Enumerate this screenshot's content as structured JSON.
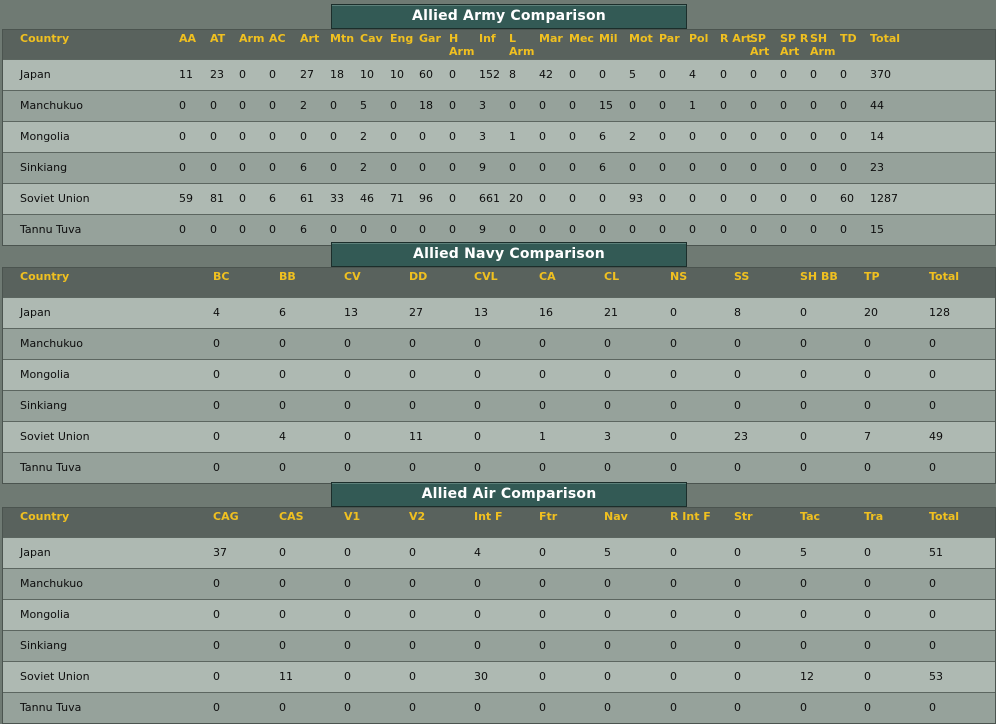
{
  "army": {
    "title": "Allied Army Comparison",
    "columns": [
      "Country",
      "AA",
      "AT",
      "Arm",
      "AC",
      "Art",
      "Mtn",
      "Cav",
      "Eng",
      "Gar",
      "H\nArm",
      "Inf",
      "L\nArm",
      "Mar",
      "Mec",
      "Mil",
      "Mot",
      "Par",
      "Pol",
      "R Art",
      "SP\nArt",
      "SP R\nArt",
      "SH\nArm",
      "TD",
      "Total"
    ],
    "rows": [
      [
        "Japan",
        "11",
        "23",
        "0",
        "0",
        "27",
        "18",
        "10",
        "10",
        "60",
        "0",
        "152",
        "8",
        "42",
        "0",
        "0",
        "5",
        "0",
        "4",
        "0",
        "0",
        "0",
        "0",
        "0",
        "370"
      ],
      [
        "Manchukuo",
        "0",
        "0",
        "0",
        "0",
        "2",
        "0",
        "5",
        "0",
        "18",
        "0",
        "3",
        "0",
        "0",
        "0",
        "15",
        "0",
        "0",
        "1",
        "0",
        "0",
        "0",
        "0",
        "0",
        "44"
      ],
      [
        "Mongolia",
        "0",
        "0",
        "0",
        "0",
        "0",
        "0",
        "2",
        "0",
        "0",
        "0",
        "3",
        "1",
        "0",
        "0",
        "6",
        "2",
        "0",
        "0",
        "0",
        "0",
        "0",
        "0",
        "0",
        "14"
      ],
      [
        "Sinkiang",
        "0",
        "0",
        "0",
        "0",
        "6",
        "0",
        "2",
        "0",
        "0",
        "0",
        "9",
        "0",
        "0",
        "0",
        "6",
        "0",
        "0",
        "0",
        "0",
        "0",
        "0",
        "0",
        "0",
        "23"
      ],
      [
        "Soviet Union",
        "59",
        "81",
        "0",
        "6",
        "61",
        "33",
        "46",
        "71",
        "96",
        "0",
        "661",
        "20",
        "0",
        "0",
        "0",
        "93",
        "0",
        "0",
        "0",
        "0",
        "0",
        "0",
        "60",
        "1287"
      ],
      [
        "Tannu Tuva",
        "0",
        "0",
        "0",
        "0",
        "6",
        "0",
        "0",
        "0",
        "0",
        "0",
        "9",
        "0",
        "0",
        "0",
        "0",
        "0",
        "0",
        "0",
        "0",
        "0",
        "0",
        "0",
        "0",
        "15"
      ]
    ]
  },
  "navy": {
    "title": "Allied Navy Comparison",
    "columns": [
      "Country",
      "BC",
      "BB",
      "CV",
      "DD",
      "CVL",
      "CA",
      "CL",
      "NS",
      "SS",
      "SH BB",
      "TP",
      "Total"
    ],
    "rows": [
      [
        "Japan",
        "4",
        "6",
        "13",
        "27",
        "13",
        "16",
        "21",
        "0",
        "8",
        "0",
        "20",
        "128"
      ],
      [
        "Manchukuo",
        "0",
        "0",
        "0",
        "0",
        "0",
        "0",
        "0",
        "0",
        "0",
        "0",
        "0",
        "0"
      ],
      [
        "Mongolia",
        "0",
        "0",
        "0",
        "0",
        "0",
        "0",
        "0",
        "0",
        "0",
        "0",
        "0",
        "0"
      ],
      [
        "Sinkiang",
        "0",
        "0",
        "0",
        "0",
        "0",
        "0",
        "0",
        "0",
        "0",
        "0",
        "0",
        "0"
      ],
      [
        "Soviet Union",
        "0",
        "4",
        "0",
        "11",
        "0",
        "1",
        "3",
        "0",
        "23",
        "0",
        "7",
        "49"
      ],
      [
        "Tannu Tuva",
        "0",
        "0",
        "0",
        "0",
        "0",
        "0",
        "0",
        "0",
        "0",
        "0",
        "0",
        "0"
      ]
    ]
  },
  "air": {
    "title": "Allied Air Comparison",
    "columns": [
      "Country",
      "CAG",
      "CAS",
      "V1",
      "V2",
      "Int F",
      "Ftr",
      "Nav",
      "R Int F",
      "Str",
      "Tac",
      "Tra",
      "Total"
    ],
    "rows": [
      [
        "Japan",
        "37",
        "0",
        "0",
        "0",
        "4",
        "0",
        "5",
        "0",
        "0",
        "5",
        "0",
        "51"
      ],
      [
        "Manchukuo",
        "0",
        "0",
        "0",
        "0",
        "0",
        "0",
        "0",
        "0",
        "0",
        "0",
        "0",
        "0"
      ],
      [
        "Mongolia",
        "0",
        "0",
        "0",
        "0",
        "0",
        "0",
        "0",
        "0",
        "0",
        "0",
        "0",
        "0"
      ],
      [
        "Sinkiang",
        "0",
        "0",
        "0",
        "0",
        "0",
        "0",
        "0",
        "0",
        "0",
        "0",
        "0",
        "0"
      ],
      [
        "Soviet Union",
        "0",
        "11",
        "0",
        "0",
        "30",
        "0",
        "0",
        "0",
        "0",
        "12",
        "0",
        "53"
      ],
      [
        "Tannu Tuva",
        "0",
        "0",
        "0",
        "0",
        "0",
        "0",
        "0",
        "0",
        "0",
        "0",
        "0",
        "0"
      ]
    ]
  }
}
